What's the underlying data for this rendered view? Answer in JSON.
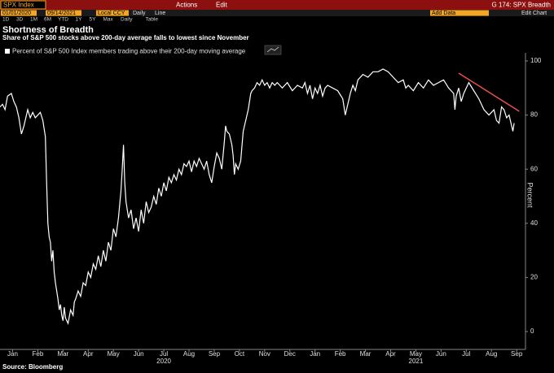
{
  "toolbar": {
    "ticker": "SPX Index",
    "actions": "Actions",
    "edit": "Edit",
    "page": "G 174: SPX Breadth",
    "start_date": "01/01/2020",
    "end_date": "09/14/2021",
    "currency": "Local CCY",
    "frequency": "Daily",
    "style": "Line",
    "add_data": "Add Data",
    "edit_chart": "Edit Chart",
    "ranges": [
      "1D",
      "3D",
      "1M",
      "6M",
      "YTD",
      "1Y",
      "5Y",
      "Max",
      "Daily",
      "Table"
    ]
  },
  "source": "Source: Bloomberg",
  "chart_data": {
    "type": "line",
    "title": "Shortness of Breadth",
    "subtitle": "Share of S&P 500 stocks above 200-day average falls to lowest since November",
    "y_label": "Percent",
    "x": [
      0,
      0.1,
      0.2,
      0.3,
      0.45,
      0.55,
      0.65,
      0.75,
      0.85,
      0.95,
      1.0,
      1.1,
      1.2,
      1.3,
      1.4,
      1.5,
      1.6,
      1.7,
      1.8,
      1.85,
      1.9,
      1.95,
      2.0,
      2.05,
      2.1,
      2.15,
      2.2,
      2.3,
      2.35,
      2.4,
      2.45,
      2.5,
      2.55,
      2.6,
      2.7,
      2.8,
      2.9,
      2.95,
      3.0,
      3.1,
      3.2,
      3.3,
      3.4,
      3.5,
      3.6,
      3.7,
      3.8,
      3.9,
      4.0,
      4.1,
      4.2,
      4.3,
      4.4,
      4.5,
      4.6,
      4.7,
      4.8,
      4.85,
      4.9,
      4.95,
      5.0,
      5.1,
      5.2,
      5.3,
      5.4,
      5.5,
      5.6,
      5.7,
      5.8,
      5.9,
      6.0,
      6.1,
      6.2,
      6.3,
      6.4,
      6.5,
      6.6,
      6.7,
      6.8,
      6.9,
      7.0,
      7.1,
      7.2,
      7.3,
      7.4,
      7.5,
      7.6,
      7.7,
      7.8,
      7.9,
      8.0,
      8.1,
      8.2,
      8.3,
      8.4,
      8.5,
      8.6,
      8.7,
      8.8,
      8.9,
      8.95,
      9.0,
      9.1,
      9.2,
      9.25,
      9.3,
      9.35,
      9.45,
      9.55,
      9.65,
      9.75,
      9.85,
      9.95,
      10.0,
      10.1,
      10.2,
      10.3,
      10.4,
      10.5,
      10.6,
      10.7,
      10.8,
      10.9,
      11.0,
      11.2,
      11.4,
      11.6,
      11.8,
      12.0,
      12.1,
      12.2,
      12.3,
      12.4,
      12.5,
      12.6,
      12.7,
      12.8,
      12.9,
      13.0,
      13.2,
      13.4,
      13.6,
      13.7,
      13.8,
      13.9,
      14.0,
      14.1,
      14.2,
      14.4,
      14.6,
      14.8,
      15.0,
      15.2,
      15.4,
      15.6,
      15.8,
      16.0,
      16.1,
      16.2,
      16.4,
      16.6,
      16.8,
      17.0,
      17.2,
      17.4,
      17.6,
      17.8,
      18.0,
      18.05,
      18.1,
      18.2,
      18.3,
      18.4,
      18.6,
      18.8,
      19.0,
      19.1,
      19.2,
      19.4,
      19.6,
      19.7,
      19.8,
      19.9,
      20.0,
      20.1,
      20.2,
      20.3,
      20.35,
      20.4
    ],
    "series": [
      {
        "name": "Percent of S&P 500 Index members trading above their 200-day moving average",
        "color": "#ffffff",
        "values": [
          83,
          84,
          82,
          87,
          88,
          85,
          83,
          79,
          73,
          76,
          78,
          82,
          79,
          81,
          79,
          80,
          81,
          78,
          72,
          55,
          40,
          35,
          33,
          26,
          30,
          22,
          18,
          12,
          8,
          10,
          6,
          4,
          9,
          5,
          3,
          8,
          6,
          11,
          12,
          15,
          13,
          18,
          17,
          22,
          20,
          25,
          23,
          28,
          24,
          30,
          26,
          33,
          30,
          38,
          35,
          42,
          52,
          60,
          69,
          55,
          48,
          42,
          45,
          38,
          42,
          37,
          45,
          40,
          48,
          44,
          46,
          50,
          47,
          53,
          50,
          55,
          52,
          57,
          55,
          58,
          56,
          60,
          58,
          62,
          61,
          63,
          59,
          63,
          61,
          64,
          62,
          60,
          63,
          58,
          55,
          61,
          66,
          64,
          60,
          70,
          76,
          74,
          73,
          69,
          65,
          58,
          62,
          60,
          63,
          74,
          78,
          82,
          88,
          89,
          90,
          92,
          91,
          93,
          91,
          92,
          90,
          92,
          91,
          92,
          90,
          92,
          89,
          91,
          90,
          92,
          88,
          91,
          86,
          90,
          88,
          91,
          87,
          90,
          91,
          90,
          89,
          86,
          80,
          84,
          88,
          91,
          89,
          93,
          95,
          94,
          96,
          96,
          97,
          96,
          94,
          92,
          93,
          90,
          91,
          89,
          92,
          90,
          93,
          91,
          92,
          93,
          90,
          88,
          82,
          87,
          90,
          85,
          88,
          92,
          89,
          86,
          84,
          82,
          80,
          82,
          78,
          77,
          83,
          82,
          79,
          80,
          76,
          74,
          77
        ]
      }
    ],
    "trendline": {
      "x": [
        18.2,
        20.6
      ],
      "values": [
        95.5,
        81.4
      ],
      "color": "#e8504a"
    },
    "xlim": [
      0,
      20.85
    ],
    "xticks": [
      {
        "value": 0.5,
        "label": "Jan"
      },
      {
        "value": 1.5,
        "label": "Feb"
      },
      {
        "value": 2.5,
        "label": "Mar"
      },
      {
        "value": 3.5,
        "label": "Apr"
      },
      {
        "value": 4.5,
        "label": "May"
      },
      {
        "value": 5.5,
        "label": "Jun"
      },
      {
        "value": 6.5,
        "label": "Jul"
      },
      {
        "value": 7.5,
        "label": "Aug"
      },
      {
        "value": 8.5,
        "label": "Sep"
      },
      {
        "value": 9.5,
        "label": "Oct"
      },
      {
        "value": 10.5,
        "label": "Nov"
      },
      {
        "value": 11.5,
        "label": "Dec"
      },
      {
        "value": 12.5,
        "label": "Jan"
      },
      {
        "value": 13.5,
        "label": "Feb"
      },
      {
        "value": 14.5,
        "label": "Mar"
      },
      {
        "value": 15.5,
        "label": "Apr"
      },
      {
        "value": 16.5,
        "label": "May"
      },
      {
        "value": 17.5,
        "label": "Jun"
      },
      {
        "value": 18.5,
        "label": "Jul"
      },
      {
        "value": 19.5,
        "label": "Aug"
      },
      {
        "value": 20.5,
        "label": "Sep"
      }
    ],
    "year_labels": [
      {
        "value": 6.5,
        "label": "2020"
      },
      {
        "value": 16.5,
        "label": "2021"
      }
    ],
    "ylim": [
      -3,
      103
    ],
    "yticks": [
      0,
      20,
      40,
      60,
      80,
      100
    ]
  }
}
